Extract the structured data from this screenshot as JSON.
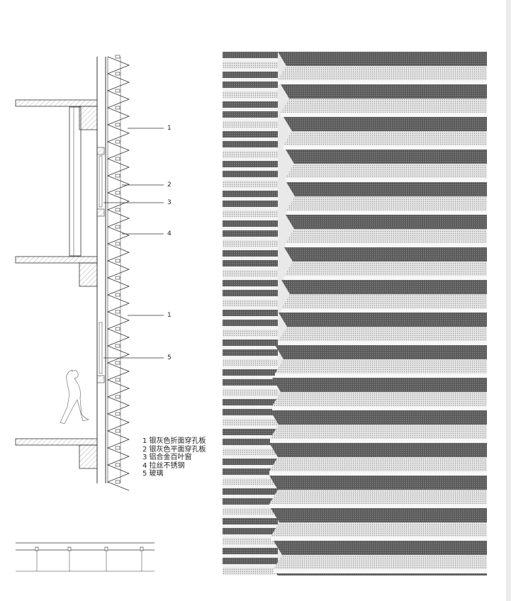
{
  "callouts": [
    {
      "number": "1"
    },
    {
      "number": "2"
    },
    {
      "number": "3"
    },
    {
      "number": "4"
    },
    {
      "number": "1"
    },
    {
      "number": "5"
    }
  ],
  "legend": [
    {
      "text": "1 银灰色折面穿孔板"
    },
    {
      "text": "2 银灰色平面穿孔板"
    },
    {
      "text": "3 铝合金百叶窗"
    },
    {
      "text": "4 拉丝不锈钢"
    },
    {
      "text": "5 玻璃"
    }
  ],
  "colors": {
    "line": "#333333",
    "hatch": "#8a8a8a",
    "panel_light": "#e6e6e6",
    "panel_mid": "#b8b8b8",
    "panel_dark": "#5a5a5a",
    "background": "#ffffff"
  }
}
